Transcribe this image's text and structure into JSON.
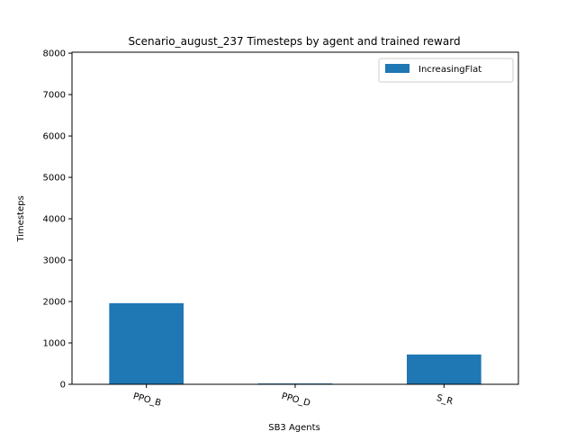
{
  "chart_data": {
    "type": "bar",
    "title": "Scenario_august_237 Timesteps by agent and trained reward",
    "xlabel": "SB3 Agents",
    "ylabel": "Timesteps",
    "categories": [
      "PPO_B",
      "PPO_D",
      "S_R"
    ],
    "series": [
      {
        "name": "IncreasingFlat",
        "values": [
          1960,
          20,
          720
        ],
        "color": "#1f77b4"
      }
    ],
    "ylim": [
      0,
      8000
    ],
    "yticks": [
      "0",
      "1000",
      "2000",
      "3000",
      "4000",
      "5000",
      "6000",
      "7000",
      "8000"
    ],
    "grid": false,
    "legend_position": "top-right"
  }
}
